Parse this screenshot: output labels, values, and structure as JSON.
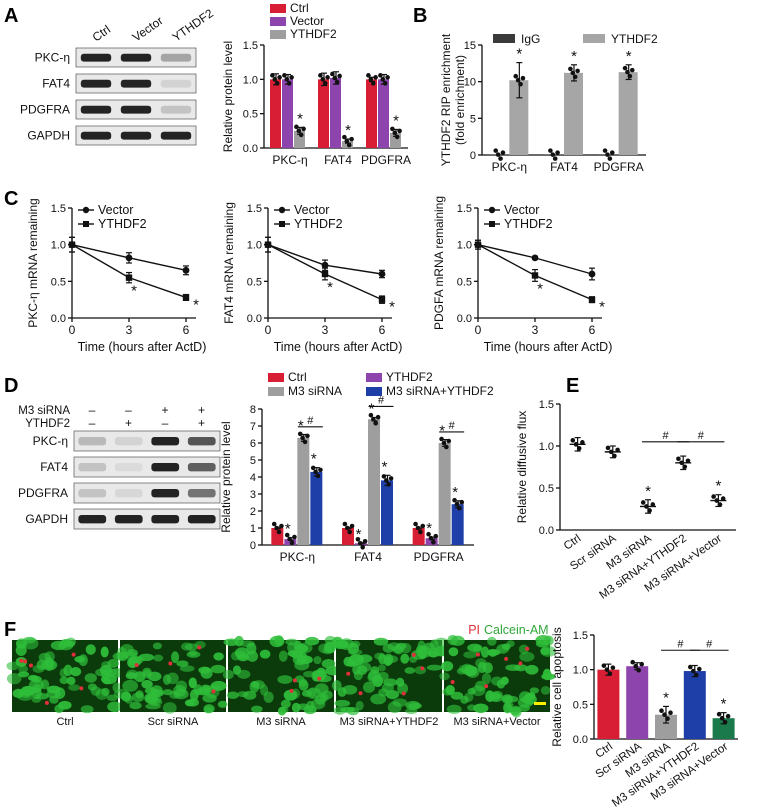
{
  "colors": {
    "ctrl": "#d81e35",
    "vector": "#8e44ad",
    "ythdf2": "#9e9e9e",
    "m3": "#9e9e9e",
    "m3y": "#1f3fa8",
    "m3v": "#1a7a4c",
    "igg": "#3a3a3a",
    "ythdf2_rip": "#a6a6a6",
    "black": "#111111",
    "cell_green": "#2fbe3a",
    "cell_dark": "#0b3a0b",
    "pi_red": "#e0303a",
    "calcein_green": "#2fa83a",
    "scale_bar": "#ffee00"
  },
  "panel_letters": {
    "a": "A",
    "b": "B",
    "c": "C",
    "d": "D",
    "e": "E",
    "f": "F"
  },
  "blot_a": {
    "lanes": [
      "Ctrl",
      "Vector",
      "YTHDF2"
    ],
    "rows": [
      "PKC-η",
      "FAT4",
      "PDGFRA",
      "GAPDH"
    ],
    "intensity": [
      [
        1,
        1,
        0.35
      ],
      [
        1,
        1,
        0.12
      ],
      [
        1,
        1,
        0.2
      ],
      [
        1,
        1,
        1
      ]
    ]
  },
  "blot_d": {
    "treatments": [
      {
        "name": "M3 siRNA",
        "signs": [
          "–",
          "–",
          "+",
          "+"
        ]
      },
      {
        "name": "YTHDF2",
        "signs": [
          "–",
          "+",
          "–",
          "+"
        ]
      }
    ],
    "rows": [
      "PKC-η",
      "FAT4",
      "PDGFRA",
      "GAPDH"
    ],
    "intensity": [
      [
        0.25,
        0.12,
        1,
        0.75
      ],
      [
        0.2,
        0.08,
        1,
        0.7
      ],
      [
        0.2,
        0.1,
        1,
        0.6
      ],
      [
        1,
        1,
        1,
        1
      ]
    ]
  },
  "chart_data": [
    {
      "id": "A",
      "type": "bar",
      "categories": [
        "PKC-η",
        "FAT4",
        "PDGFRA"
      ],
      "ylabel": "Relative protein level",
      "ylim": [
        0,
        1.5
      ],
      "yticks": [
        "0.0",
        "0.5",
        "1.0",
        "1.5"
      ],
      "legend": "top",
      "legend_position": "top-left",
      "series": [
        {
          "name": "Ctrl",
          "color_key": "ctrl",
          "values": [
            1.0,
            1.0,
            1.0
          ],
          "err": [
            0.08,
            0.09,
            0.03
          ]
        },
        {
          "name": "Vector",
          "color_key": "vector",
          "values": [
            1.0,
            1.02,
            1.0
          ],
          "err": [
            0.07,
            0.09,
            0.07
          ]
        },
        {
          "name": "YTHDF2",
          "color_key": "ythdf2",
          "values": [
            0.25,
            0.1,
            0.22
          ],
          "err": [
            0.05,
            0.03,
            0.05
          ]
        }
      ],
      "marks": [
        "*",
        "*",
        "*"
      ],
      "mark_series": 2
    },
    {
      "id": "B",
      "type": "bar",
      "categories": [
        "PKC-η",
        "FAT4",
        "PDGFRA"
      ],
      "ylabel": "YTHDF2 RIP enrichment",
      "ylabel2": "(fold enrichment)",
      "ylim": [
        0,
        15
      ],
      "yticks": [
        "0",
        "5",
        "10",
        "15"
      ],
      "legend_position": "top",
      "series": [
        {
          "name": "IgG",
          "color_key": "igg",
          "values": [
            0.05,
            0.05,
            0.05
          ],
          "err": [
            0,
            0,
            0
          ]
        },
        {
          "name": "YTHDF2",
          "color_key": "ythdf2_rip",
          "values": [
            10.2,
            11.2,
            11.3
          ],
          "err": [
            2.4,
            1.1,
            1.0
          ]
        }
      ],
      "marks": [
        "*",
        "*",
        "*"
      ],
      "mark_series": 1
    },
    {
      "id": "C1",
      "type": "line",
      "ylabel": "PKC-η mRNA remaining",
      "xlabel": "Time (hours after ActD)",
      "x": [
        0,
        3,
        6
      ],
      "xticks": [
        "0",
        "3",
        "6"
      ],
      "ylim": [
        0,
        1.5
      ],
      "yticks": [
        "0.0",
        "0.5",
        "1.0",
        "1.5"
      ],
      "series": [
        {
          "name": "Vector",
          "marker": "circle",
          "values": [
            1.0,
            0.82,
            0.65
          ],
          "err": [
            0.1,
            0.07,
            0.06
          ]
        },
        {
          "name": "YTHDF2",
          "marker": "square",
          "values": [
            1.0,
            0.55,
            0.28
          ],
          "err": [
            0.1,
            0.07,
            0.04
          ]
        }
      ],
      "marks": [
        "*",
        "*"
      ]
    },
    {
      "id": "C2",
      "type": "line",
      "ylabel": "FAT4 mRNA remaining",
      "xlabel": "Time (hours after ActD)",
      "x": [
        0,
        3,
        6
      ],
      "xticks": [
        "0",
        "3",
        "6"
      ],
      "ylim": [
        0,
        1.5
      ],
      "yticks": [
        "0.0",
        "0.5",
        "1.0",
        "1.5"
      ],
      "series": [
        {
          "name": "Vector",
          "marker": "circle",
          "values": [
            1.0,
            0.72,
            0.6
          ],
          "err": [
            0.1,
            0.07,
            0.05
          ]
        },
        {
          "name": "YTHDF2",
          "marker": "square",
          "values": [
            1.0,
            0.6,
            0.25
          ],
          "err": [
            0.1,
            0.08,
            0.05
          ]
        }
      ],
      "marks": [
        "*",
        "*"
      ]
    },
    {
      "id": "C3",
      "type": "line",
      "ylabel": "PDGFA mRNA remaining",
      "xlabel": "Time (hours after ActD)",
      "x": [
        0,
        3,
        6
      ],
      "xticks": [
        "0",
        "3",
        "6"
      ],
      "ylim": [
        0,
        1.5
      ],
      "yticks": [
        "0.0",
        "0.5",
        "1.0",
        "1.5"
      ],
      "series": [
        {
          "name": "Vector",
          "marker": "circle",
          "values": [
            1.0,
            0.82,
            0.6
          ],
          "err": [
            0.06,
            0.02,
            0.08
          ]
        },
        {
          "name": "YTHDF2",
          "marker": "square",
          "values": [
            1.0,
            0.58,
            0.25
          ],
          "err": [
            0.06,
            0.08,
            0.04
          ]
        }
      ],
      "marks": [
        "*",
        "*"
      ]
    },
    {
      "id": "D",
      "type": "bar",
      "categories": [
        "PKC-η",
        "FAT4",
        "PDGFRA"
      ],
      "ylabel": "Relative protein level",
      "ylim": [
        0,
        8
      ],
      "yticks": [
        "0",
        "1",
        "2",
        "3",
        "4",
        "5",
        "6",
        "7",
        "8"
      ],
      "legend_position": "top",
      "series": [
        {
          "name": "Ctrl",
          "color_key": "ctrl",
          "values": [
            1.0,
            1.0,
            1.0
          ],
          "err": [
            0.04,
            0.04,
            0.05
          ]
        },
        {
          "name": "YTHDF2",
          "color_key": "vector",
          "values": [
            0.35,
            0.1,
            0.4
          ],
          "err": [
            0.08,
            0.03,
            0.06
          ]
        },
        {
          "name": "M3 siRNA",
          "color_key": "m3",
          "values": [
            6.3,
            7.4,
            6.0
          ],
          "err": [
            0.2,
            0.1,
            0.2
          ]
        },
        {
          "name": "M3 siRNA+YTHDF2",
          "color_key": "m3y",
          "values": [
            4.3,
            3.8,
            2.4
          ],
          "err": [
            0.25,
            0.3,
            0.2
          ]
        }
      ],
      "marks": [
        "*",
        "*",
        "*"
      ],
      "hash": "#"
    },
    {
      "id": "E",
      "type": "scatter",
      "categories": [
        "Ctrl",
        "Scr siRNA",
        "M3 siRNA",
        "M3 siRNA+YTHDF2",
        "M3 siRNA+Vector"
      ],
      "ylabel": "Relative diffusive flux",
      "ylim": [
        0,
        1.5
      ],
      "yticks": [
        "0.0",
        "0.5",
        "1.0",
        "1.5"
      ],
      "values": [
        1.02,
        0.93,
        0.28,
        0.8,
        0.35
      ],
      "err": [
        0.08,
        0.07,
        0.08,
        0.08,
        0.07
      ],
      "marks": [
        "",
        "",
        "*",
        "",
        "*"
      ],
      "hash": "#"
    },
    {
      "id": "F",
      "type": "bar",
      "categories": [
        "Ctrl",
        "Scr siRNA",
        "M3 siRNA",
        "M3 siRNA+YTHDF2",
        "M3 siRNA+Vector"
      ],
      "ylabel": "Relative cell apoptosis",
      "ylim": [
        0,
        1.5
      ],
      "yticks": [
        "0.0",
        "0.5",
        "1.0",
        "1.5"
      ],
      "color_keys": [
        "ctrl",
        "vector",
        "m3",
        "m3y",
        "m3v"
      ],
      "values": [
        1.0,
        1.05,
        0.35,
        0.98,
        0.3
      ],
      "err": [
        0.08,
        0.05,
        0.12,
        0.08,
        0.08
      ],
      "marks": [
        "",
        "",
        "*",
        "",
        "*"
      ],
      "hash": "#"
    }
  ],
  "micro": {
    "captions": [
      "Ctrl",
      "Scr siRNA",
      "M3 siRNA",
      "M3 siRNA+YTHDF2",
      "M3 siRNA+Vector"
    ],
    "stain1": "PI",
    "stain2": "Calcein-AM"
  }
}
